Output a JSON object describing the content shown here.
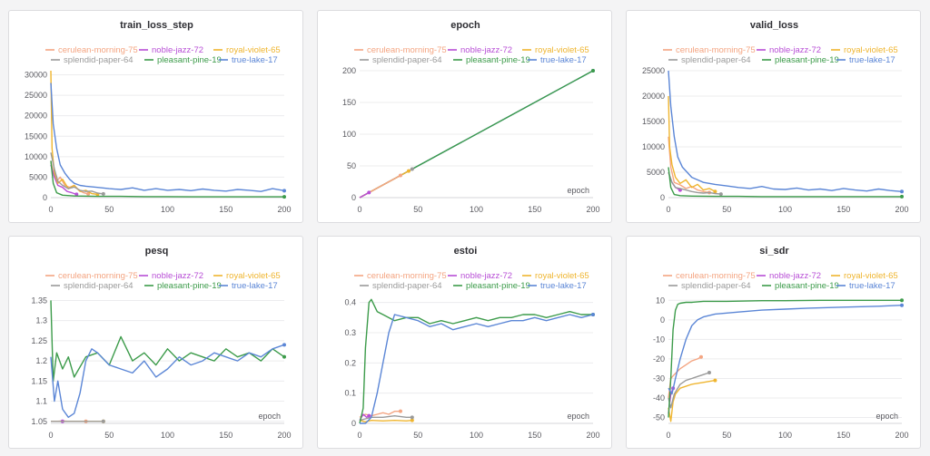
{
  "series_styles": [
    {
      "name": "cerulean-morning-75",
      "color": "#f4a582"
    },
    {
      "name": "noble-jazz-72",
      "color": "#b84fd6"
    },
    {
      "name": "royal-violet-65",
      "color": "#efb52f"
    },
    {
      "name": "splendid-paper-64",
      "color": "#9a9a9a"
    },
    {
      "name": "pleasant-pine-19",
      "color": "#3c9b4a"
    },
    {
      "name": "true-lake-17",
      "color": "#5b86d6"
    }
  ],
  "chart_data": [
    {
      "id": "train_loss_step",
      "type": "line",
      "title": "train_loss_step",
      "xlabel": "",
      "xlim": [
        0,
        200
      ],
      "ylim": [
        0,
        31000
      ],
      "xticks": [
        0,
        50,
        100,
        150,
        200
      ],
      "yticks": [
        0,
        5000,
        10000,
        15000,
        20000,
        25000,
        30000
      ],
      "series": [
        {
          "name": "cerulean-morning-75",
          "x": [
            0,
            2,
            5,
            8,
            12,
            16,
            20,
            24,
            28,
            32
          ],
          "y": [
            9000,
            6000,
            4000,
            5000,
            3000,
            2500,
            3000,
            1800,
            1200,
            900
          ]
        },
        {
          "name": "noble-jazz-72",
          "x": [
            0,
            3,
            6,
            10,
            14,
            18,
            22
          ],
          "y": [
            8000,
            5000,
            3000,
            2500,
            1500,
            1200,
            800
          ]
        },
        {
          "name": "royal-violet-65",
          "x": [
            0,
            1,
            3,
            6,
            10,
            15,
            20,
            25,
            30,
            35,
            40
          ],
          "y": [
            31000,
            12000,
            6000,
            3500,
            4500,
            2200,
            3000,
            1500,
            1800,
            1000,
            800
          ]
        },
        {
          "name": "splendid-paper-64",
          "x": [
            0,
            3,
            6,
            10,
            15,
            20,
            25,
            30,
            35,
            40,
            45
          ],
          "y": [
            11000,
            7000,
            4000,
            3000,
            2200,
            2600,
            1800,
            1500,
            1600,
            1100,
            900
          ]
        },
        {
          "name": "pleasant-pine-19",
          "x": [
            0,
            2,
            5,
            10,
            20,
            40,
            60,
            80,
            100,
            120,
            140,
            160,
            180,
            200
          ],
          "y": [
            9000,
            3500,
            1200,
            600,
            400,
            300,
            300,
            250,
            250,
            200,
            200,
            200,
            200,
            200
          ]
        },
        {
          "name": "true-lake-17",
          "x": [
            0,
            2,
            5,
            8,
            12,
            16,
            20,
            25,
            30,
            40,
            50,
            60,
            70,
            80,
            90,
            100,
            110,
            120,
            130,
            140,
            150,
            160,
            170,
            180,
            190,
            200
          ],
          "y": [
            28000,
            18000,
            12000,
            8000,
            6000,
            4500,
            3500,
            3000,
            2800,
            2500,
            2200,
            2000,
            2400,
            1800,
            2200,
            1800,
            2000,
            1700,
            2100,
            1800,
            1600,
            2000,
            1800,
            1500,
            2200,
            1700
          ]
        }
      ]
    },
    {
      "id": "epoch",
      "type": "line",
      "title": "epoch",
      "xlabel": "epoch",
      "xlim": [
        0,
        200
      ],
      "ylim": [
        0,
        200
      ],
      "xticks": [
        0,
        50,
        100,
        150,
        200
      ],
      "yticks": [
        0,
        50,
        100,
        150,
        200
      ],
      "series": [
        {
          "name": "true-lake-17",
          "x": [
            0,
            200
          ],
          "y": [
            0,
            200
          ]
        },
        {
          "name": "pleasant-pine-19",
          "x": [
            0,
            200
          ],
          "y": [
            0,
            200
          ]
        },
        {
          "name": "splendid-paper-64",
          "x": [
            0,
            45
          ],
          "y": [
            0,
            45
          ]
        },
        {
          "name": "royal-violet-65",
          "x": [
            0,
            42
          ],
          "y": [
            0,
            42
          ]
        },
        {
          "name": "cerulean-morning-75",
          "x": [
            0,
            35
          ],
          "y": [
            0,
            35
          ]
        },
        {
          "name": "noble-jazz-72",
          "x": [
            0,
            8
          ],
          "y": [
            0,
            8
          ]
        }
      ]
    },
    {
      "id": "valid_loss",
      "type": "line",
      "title": "valid_loss",
      "xlabel": "",
      "xlim": [
        0,
        200
      ],
      "ylim": [
        0,
        25000
      ],
      "xticks": [
        0,
        50,
        100,
        150,
        200
      ],
      "yticks": [
        0,
        5000,
        10000,
        15000,
        20000,
        25000
      ],
      "series": [
        {
          "name": "cerulean-morning-75",
          "x": [
            0,
            2,
            5,
            10,
            15,
            20,
            25,
            30,
            35
          ],
          "y": [
            12000,
            6000,
            3000,
            2500,
            1800,
            2200,
            1500,
            1200,
            1000
          ]
        },
        {
          "name": "noble-jazz-72",
          "x": [
            0,
            3,
            6,
            10
          ],
          "y": [
            5000,
            3000,
            2000,
            1500
          ]
        },
        {
          "name": "royal-violet-65",
          "x": [
            0,
            1,
            3,
            6,
            10,
            15,
            20,
            25,
            30,
            35,
            40
          ],
          "y": [
            20000,
            10000,
            6500,
            4000,
            2800,
            3500,
            2000,
            2600,
            1500,
            1800,
            1200
          ]
        },
        {
          "name": "splendid-paper-64",
          "x": [
            0,
            3,
            6,
            10,
            15,
            20,
            25,
            30,
            35,
            40,
            45
          ],
          "y": [
            5000,
            3000,
            2000,
            1800,
            1500,
            1200,
            1000,
            900,
            1000,
            800,
            700
          ]
        },
        {
          "name": "pleasant-pine-19",
          "x": [
            0,
            2,
            5,
            10,
            20,
            40,
            60,
            80,
            100,
            120,
            140,
            160,
            180,
            200
          ],
          "y": [
            6000,
            2000,
            600,
            400,
            300,
            250,
            250,
            200,
            200,
            200,
            200,
            200,
            200,
            200
          ]
        },
        {
          "name": "true-lake-17",
          "x": [
            0,
            2,
            5,
            8,
            12,
            16,
            20,
            25,
            30,
            40,
            50,
            60,
            70,
            80,
            90,
            100,
            110,
            120,
            130,
            140,
            150,
            160,
            170,
            180,
            190,
            200
          ],
          "y": [
            25000,
            18000,
            12000,
            8000,
            6000,
            5000,
            4000,
            3500,
            3000,
            2600,
            2300,
            2000,
            1800,
            2200,
            1700,
            1600,
            1900,
            1500,
            1700,
            1400,
            1800,
            1500,
            1300,
            1700,
            1400,
            1200
          ]
        }
      ]
    },
    {
      "id": "pesq",
      "type": "line",
      "title": "pesq",
      "xlabel": "epoch",
      "xlim": [
        0,
        200
      ],
      "ylim": [
        1.045,
        1.36
      ],
      "xticks": [
        0,
        50,
        100,
        150,
        200
      ],
      "yticks": [
        1.05,
        1.1,
        1.15,
        1.2,
        1.25,
        1.3,
        1.35
      ],
      "series": [
        {
          "name": "cerulean-morning-75",
          "x": [
            0,
            5,
            10,
            15,
            20,
            25,
            30
          ],
          "y": [
            1.05,
            1.05,
            1.051,
            1.05,
            1.05,
            1.05,
            1.05
          ]
        },
        {
          "name": "noble-jazz-72",
          "x": [
            0,
            5,
            10
          ],
          "y": [
            1.05,
            1.05,
            1.05
          ]
        },
        {
          "name": "royal-violet-65",
          "x": [
            0,
            10,
            20,
            30,
            40,
            45
          ],
          "y": [
            1.05,
            1.05,
            1.05,
            1.05,
            1.05,
            1.05
          ]
        },
        {
          "name": "splendid-paper-64",
          "x": [
            0,
            10,
            20,
            30,
            40,
            45
          ],
          "y": [
            1.05,
            1.05,
            1.05,
            1.05,
            1.05,
            1.05
          ]
        },
        {
          "name": "pleasant-pine-19",
          "x": [
            0,
            2,
            5,
            10,
            15,
            20,
            30,
            40,
            50,
            60,
            70,
            80,
            90,
            100,
            110,
            120,
            130,
            140,
            150,
            160,
            170,
            180,
            190,
            200
          ],
          "y": [
            1.35,
            1.15,
            1.22,
            1.18,
            1.21,
            1.16,
            1.21,
            1.22,
            1.19,
            1.26,
            1.2,
            1.22,
            1.19,
            1.23,
            1.2,
            1.22,
            1.21,
            1.2,
            1.23,
            1.21,
            1.22,
            1.2,
            1.23,
            1.21
          ]
        },
        {
          "name": "true-lake-17",
          "x": [
            0,
            3,
            6,
            10,
            15,
            20,
            25,
            30,
            35,
            40,
            50,
            60,
            70,
            80,
            90,
            100,
            110,
            120,
            130,
            140,
            150,
            160,
            170,
            180,
            190,
            200
          ],
          "y": [
            1.21,
            1.1,
            1.15,
            1.08,
            1.06,
            1.07,
            1.12,
            1.2,
            1.23,
            1.22,
            1.19,
            1.18,
            1.17,
            1.2,
            1.16,
            1.18,
            1.21,
            1.19,
            1.2,
            1.22,
            1.21,
            1.2,
            1.22,
            1.21,
            1.23,
            1.24
          ]
        }
      ]
    },
    {
      "id": "estoi",
      "type": "line",
      "title": "estoi",
      "xlabel": "epoch",
      "xlim": [
        0,
        200
      ],
      "ylim": [
        0,
        0.42
      ],
      "xticks": [
        0,
        50,
        100,
        150,
        200
      ],
      "yticks": [
        0,
        0.1,
        0.2,
        0.3,
        0.4
      ],
      "series": [
        {
          "name": "cerulean-morning-75",
          "x": [
            0,
            5,
            10,
            15,
            20,
            25,
            30,
            35
          ],
          "y": [
            0.02,
            0.03,
            0.025,
            0.03,
            0.035,
            0.03,
            0.04,
            0.04
          ]
        },
        {
          "name": "noble-jazz-72",
          "x": [
            0,
            3,
            6,
            8
          ],
          "y": [
            0.01,
            0.03,
            0.02,
            0.025
          ]
        },
        {
          "name": "royal-violet-65",
          "x": [
            0,
            5,
            10,
            20,
            30,
            40,
            45
          ],
          "y": [
            0.01,
            0.005,
            0.01,
            0.008,
            0.01,
            0.008,
            0.01
          ]
        },
        {
          "name": "splendid-paper-64",
          "x": [
            0,
            5,
            10,
            20,
            30,
            40,
            45
          ],
          "y": [
            0.01,
            0.015,
            0.02,
            0.02,
            0.025,
            0.02,
            0.02
          ]
        },
        {
          "name": "pleasant-pine-19",
          "x": [
            0,
            3,
            5,
            8,
            10,
            15,
            20,
            30,
            40,
            50,
            60,
            70,
            80,
            90,
            100,
            110,
            120,
            130,
            140,
            150,
            160,
            170,
            180,
            190,
            200
          ],
          "y": [
            0.0,
            0.05,
            0.25,
            0.4,
            0.41,
            0.37,
            0.36,
            0.34,
            0.35,
            0.35,
            0.33,
            0.34,
            0.33,
            0.34,
            0.35,
            0.34,
            0.35,
            0.35,
            0.36,
            0.36,
            0.35,
            0.36,
            0.37,
            0.36,
            0.36
          ]
        },
        {
          "name": "true-lake-17",
          "x": [
            0,
            5,
            10,
            15,
            20,
            25,
            30,
            40,
            50,
            60,
            70,
            80,
            90,
            100,
            110,
            120,
            130,
            140,
            150,
            160,
            170,
            180,
            190,
            200
          ],
          "y": [
            0.0,
            0.0,
            0.02,
            0.1,
            0.2,
            0.3,
            0.36,
            0.35,
            0.34,
            0.32,
            0.33,
            0.31,
            0.32,
            0.33,
            0.32,
            0.33,
            0.34,
            0.34,
            0.35,
            0.34,
            0.35,
            0.36,
            0.35,
            0.36
          ]
        }
      ]
    },
    {
      "id": "si_sdr",
      "type": "line",
      "title": "si_sdr",
      "xlabel": "epoch",
      "xlim": [
        0,
        200
      ],
      "ylim": [
        -53,
        12
      ],
      "xticks": [
        0,
        50,
        100,
        150,
        200
      ],
      "yticks": [
        -50,
        -40,
        -30,
        -20,
        -10,
        0,
        10
      ],
      "series": [
        {
          "name": "cerulean-morning-75",
          "x": [
            0,
            2,
            5,
            10,
            15,
            20,
            25,
            28
          ],
          "y": [
            -40,
            -30,
            -28,
            -25,
            -23,
            -21,
            -20,
            -19
          ]
        },
        {
          "name": "noble-jazz-72",
          "x": [
            0,
            2,
            4
          ],
          "y": [
            -48,
            -38,
            -35
          ]
        },
        {
          "name": "royal-violet-65",
          "x": [
            0,
            2,
            4,
            6,
            10,
            15,
            20,
            30,
            40
          ],
          "y": [
            -45,
            -52,
            -42,
            -38,
            -35,
            -34,
            -33,
            -32,
            -31
          ]
        },
        {
          "name": "splendid-paper-64",
          "x": [
            0,
            2,
            5,
            10,
            15,
            20,
            25,
            30,
            35
          ],
          "y": [
            -40,
            -45,
            -38,
            -33,
            -31,
            -30,
            -29,
            -28,
            -27
          ]
        },
        {
          "name": "pleasant-pine-19",
          "x": [
            0,
            2,
            4,
            6,
            8,
            10,
            15,
            20,
            30,
            50,
            80,
            100,
            130,
            160,
            200
          ],
          "y": [
            -50,
            -30,
            -5,
            5,
            8,
            8.5,
            9,
            9,
            9.5,
            9.5,
            9.8,
            9.8,
            10,
            10,
            10
          ]
        },
        {
          "name": "true-lake-17",
          "x": [
            0,
            3,
            6,
            10,
            15,
            20,
            25,
            30,
            40,
            50,
            60,
            80,
            100,
            120,
            150,
            180,
            200
          ],
          "y": [
            -35,
            -38,
            -30,
            -20,
            -10,
            -3,
            0,
            1.5,
            3,
            3.5,
            4,
            5,
            5.5,
            6,
            6.5,
            7,
            7.5
          ]
        }
      ]
    }
  ]
}
